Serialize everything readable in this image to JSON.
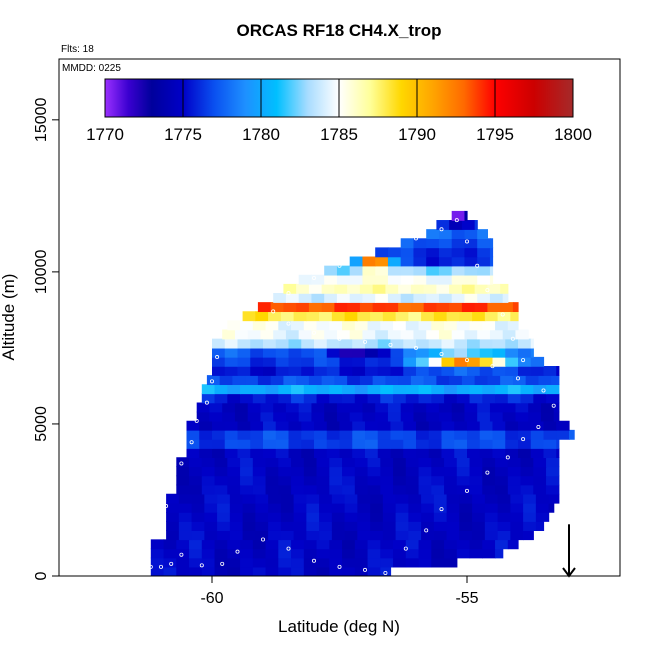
{
  "chart_data": {
    "type": "heatmap",
    "title": "ORCAS RF18 CH4.X_trop",
    "flights_label": "Flts: 18",
    "date_label": "MMDD: 0225",
    "xlabel": "Latitude (deg N)",
    "ylabel": "Altitude (m)",
    "xlim": [
      -63.0,
      -52.0
    ],
    "ylim": [
      0,
      17000
    ],
    "x_ticks": [
      -60,
      -55
    ],
    "x_tick_labels": [
      "-60",
      "-55"
    ],
    "y_ticks": [
      0,
      5000,
      10000,
      15000
    ],
    "y_tick_labels": [
      "0",
      "5000",
      "10000",
      "15000"
    ],
    "grid": false,
    "colorbar": {
      "min": 1770,
      "max": 1800,
      "ticks": [
        1770,
        1775,
        1780,
        1785,
        1790,
        1795,
        1800
      ],
      "tick_labels": [
        "1770",
        "1775",
        "1780",
        "1785",
        "1790",
        "1795",
        "1800"
      ],
      "stops": [
        {
          "v": 1770,
          "c": "#9b30ff"
        },
        {
          "v": 1771.5,
          "c": "#3a00d0"
        },
        {
          "v": 1773,
          "c": "#00009c"
        },
        {
          "v": 1775,
          "c": "#0000c8"
        },
        {
          "v": 1777,
          "c": "#0a50f0"
        },
        {
          "v": 1779,
          "c": "#1e90ff"
        },
        {
          "v": 1781,
          "c": "#00bfff"
        },
        {
          "v": 1783,
          "c": "#a8dcff"
        },
        {
          "v": 1785,
          "c": "#ffffff"
        },
        {
          "v": 1787,
          "c": "#ffff99"
        },
        {
          "v": 1789,
          "c": "#ffd700"
        },
        {
          "v": 1791,
          "c": "#ffa500"
        },
        {
          "v": 1793,
          "c": "#ff6a00"
        },
        {
          "v": 1795,
          "c": "#ff0000"
        },
        {
          "v": 1797.5,
          "c": "#cc0000"
        },
        {
          "v": 1800,
          "c": "#a52a2a"
        }
      ]
    },
    "grid_cell": {
      "dlat": 0.25,
      "dalt": 305
    },
    "field_domain": {
      "alt_max": 12000,
      "rows": [
        {
          "alt": 0,
          "lat_min": -61.2,
          "lat_max": -56.5
        },
        {
          "alt": 300,
          "lat_min": -61.2,
          "lat_max": -55.2
        },
        {
          "alt": 600,
          "lat_min": -61.2,
          "lat_max": -54.3
        },
        {
          "alt": 900,
          "lat_min": -61.2,
          "lat_max": -54.0
        },
        {
          "alt": 1200,
          "lat_min": -60.9,
          "lat_max": -53.7
        },
        {
          "alt": 1500,
          "lat_min": -60.9,
          "lat_max": -53.5
        },
        {
          "alt": 1800,
          "lat_min": -60.9,
          "lat_max": -53.4
        },
        {
          "alt": 2100,
          "lat_min": -60.9,
          "lat_max": -53.3
        },
        {
          "alt": 2400,
          "lat_min": -60.9,
          "lat_max": -53.2
        },
        {
          "alt": 2700,
          "lat_min": -60.7,
          "lat_max": -53.2
        },
        {
          "alt": 3000,
          "lat_min": -60.7,
          "lat_max": -53.2
        },
        {
          "alt": 3300,
          "lat_min": -60.7,
          "lat_max": -53.2
        },
        {
          "alt": 3600,
          "lat_min": -60.7,
          "lat_max": -53.2
        },
        {
          "alt": 3900,
          "lat_min": -60.5,
          "lat_max": -53.2
        },
        {
          "alt": 4200,
          "lat_min": -60.5,
          "lat_max": -53.2
        },
        {
          "alt": 4500,
          "lat_min": -60.5,
          "lat_max": -52.9
        },
        {
          "alt": 4800,
          "lat_min": -60.5,
          "lat_max": -53.0
        },
        {
          "alt": 5100,
          "lat_min": -60.3,
          "lat_max": -53.2
        },
        {
          "alt": 5400,
          "lat_min": -60.3,
          "lat_max": -53.2
        },
        {
          "alt": 5700,
          "lat_min": -60.2,
          "lat_max": -53.2
        },
        {
          "alt": 6000,
          "lat_min": -60.2,
          "lat_max": -53.2
        },
        {
          "alt": 6300,
          "lat_min": -60.1,
          "lat_max": -53.2
        },
        {
          "alt": 6600,
          "lat_min": -60.0,
          "lat_max": -53.2
        },
        {
          "alt": 6900,
          "lat_min": -60.0,
          "lat_max": -53.5
        },
        {
          "alt": 7200,
          "lat_min": -60.0,
          "lat_max": -53.7
        },
        {
          "alt": 7500,
          "lat_min": -60.0,
          "lat_max": -53.7
        },
        {
          "alt": 7800,
          "lat_min": -59.8,
          "lat_max": -53.8
        },
        {
          "alt": 8100,
          "lat_min": -59.7,
          "lat_max": -54.0
        },
        {
          "alt": 8400,
          "lat_min": -59.4,
          "lat_max": -54.0
        },
        {
          "alt": 8700,
          "lat_min": -59.1,
          "lat_max": -54.0
        },
        {
          "alt": 9000,
          "lat_min": -58.8,
          "lat_max": -54.2
        },
        {
          "alt": 9300,
          "lat_min": -58.6,
          "lat_max": -54.2
        },
        {
          "alt": 9600,
          "lat_min": -58.3,
          "lat_max": -54.5
        },
        {
          "alt": 9900,
          "lat_min": -57.8,
          "lat_max": -54.5
        },
        {
          "alt": 10200,
          "lat_min": -57.3,
          "lat_max": -54.5
        },
        {
          "alt": 10500,
          "lat_min": -56.8,
          "lat_max": -54.5
        },
        {
          "alt": 10800,
          "lat_min": -56.3,
          "lat_max": -54.5
        },
        {
          "alt": 11100,
          "lat_min": -55.8,
          "lat_max": -54.6
        },
        {
          "alt": 11400,
          "lat_min": -55.6,
          "lat_max": -54.8
        },
        {
          "alt": 11700,
          "lat_min": -55.3,
          "lat_max": -55.0
        }
      ]
    },
    "field_features": [
      {
        "type": "background",
        "value": 1774.8
      },
      {
        "type": "band",
        "alt_center": 6200,
        "alt_width": 250,
        "value": 1780.5
      },
      {
        "type": "band",
        "alt_center": 4500,
        "alt_width": 180,
        "value": 1778.5
      },
      {
        "type": "band",
        "alt_center": 7000,
        "alt_width": 250,
        "value": 1776.5
      },
      {
        "type": "band",
        "alt_center": 7700,
        "alt_width": 300,
        "value": 1783.5
      },
      {
        "type": "band",
        "alt_center": 8100,
        "alt_width": 250,
        "value": 1787.0
      },
      {
        "type": "band",
        "alt_center": 8800,
        "alt_width": 400,
        "value": 1794.0
      },
      {
        "type": "band",
        "alt_center": 9600,
        "alt_width": 300,
        "value": 1789.0
      },
      {
        "type": "band",
        "alt_center": 10000,
        "alt_width": 250,
        "value": 1784.0
      },
      {
        "type": "band",
        "alt_center": 10500,
        "alt_width": 300,
        "value": 1776.0
      },
      {
        "type": "band",
        "alt_center": 11200,
        "alt_width": 400,
        "value": 1778.0
      },
      {
        "type": "blob",
        "lat": -55.0,
        "alt": 7100,
        "r_lat": 0.8,
        "r_alt": 250,
        "value": 1793.0
      },
      {
        "type": "blob",
        "lat": -56.8,
        "alt": 10300,
        "r_lat": 0.3,
        "r_alt": 200,
        "value": 1796.0
      },
      {
        "type": "blob",
        "lat": -55.2,
        "alt": 11800,
        "r_lat": 0.3,
        "r_alt": 200,
        "value": 1771.0
      },
      {
        "type": "blob",
        "lat": -57.2,
        "alt": 7300,
        "r_lat": 0.5,
        "r_alt": 180,
        "value": 1771.5
      }
    ],
    "flight_points": [
      [
        -61.2,
        300
      ],
      [
        -61.0,
        300
      ],
      [
        -60.8,
        400
      ],
      [
        -60.6,
        700
      ],
      [
        -60.2,
        350
      ],
      [
        -59.8,
        400
      ],
      [
        -59.5,
        800
      ],
      [
        -59.0,
        1200
      ],
      [
        -58.5,
        900
      ],
      [
        -58.0,
        500
      ],
      [
        -57.5,
        300
      ],
      [
        -57.0,
        200
      ],
      [
        -56.6,
        100
      ],
      [
        -56.2,
        900
      ],
      [
        -55.8,
        1500
      ],
      [
        -55.5,
        2200
      ],
      [
        -55.0,
        2800
      ],
      [
        -54.6,
        3400
      ],
      [
        -54.2,
        3900
      ],
      [
        -53.9,
        4500
      ],
      [
        -53.6,
        4900
      ],
      [
        -53.3,
        5600
      ],
      [
        -53.5,
        6100
      ],
      [
        -54.0,
        6500
      ],
      [
        -54.5,
        6900
      ],
      [
        -55.0,
        7100
      ],
      [
        -55.5,
        7300
      ],
      [
        -56.0,
        7500
      ],
      [
        -56.5,
        7600
      ],
      [
        -57.0,
        7700
      ],
      [
        -57.5,
        7800
      ],
      [
        -58.0,
        8000
      ],
      [
        -58.5,
        8300
      ],
      [
        -58.8,
        8700
      ],
      [
        -58.5,
        9300
      ],
      [
        -58.0,
        9800
      ],
      [
        -57.5,
        10200
      ],
      [
        -57.0,
        10600
      ],
      [
        -56.5,
        10900
      ],
      [
        -56.0,
        11100
      ],
      [
        -55.5,
        11400
      ],
      [
        -55.2,
        11700
      ],
      [
        -55.0,
        11000
      ],
      [
        -54.8,
        10200
      ],
      [
        -54.6,
        9400
      ],
      [
        -54.3,
        8600
      ],
      [
        -54.1,
        7800
      ],
      [
        -53.9,
        7100
      ],
      [
        -59.9,
        7200
      ],
      [
        -60.0,
        6400
      ],
      [
        -60.1,
        5700
      ],
      [
        -60.3,
        5100
      ],
      [
        -60.4,
        4400
      ],
      [
        -60.6,
        3700
      ],
      [
        -60.8,
        3000
      ],
      [
        -60.9,
        2300
      ],
      [
        -61.0,
        1600
      ]
    ],
    "arrow_marker": {
      "lat": -53.0,
      "alt": 500
    }
  }
}
